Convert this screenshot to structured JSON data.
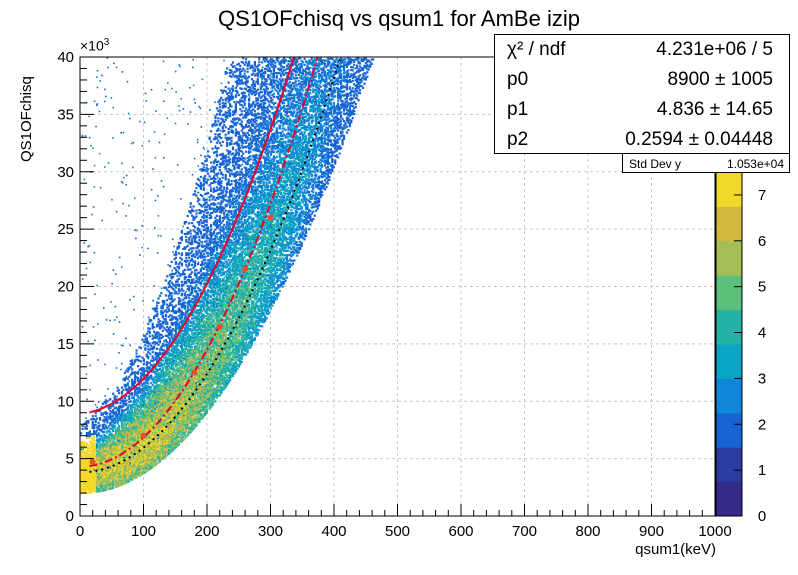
{
  "title": "QS1OFchisq vs qsum1 for AmBe izip",
  "xlabel": "qsum1(keV)",
  "ylabel": "QS1OFchisq",
  "y_multiplier": "×10",
  "y_multiplier_exp": "3",
  "stats": [
    {
      "key": "χ² / ndf",
      "value": "4.231e+06 / 5"
    },
    {
      "key": "p0",
      "value": "8900 ±  1005"
    },
    {
      "key": "p1",
      "value": "4.836 ± 14.65"
    },
    {
      "key": "p2",
      "value": "0.2594 ± 0.04448"
    }
  ],
  "stddev": {
    "key": "Std Dev y",
    "value": "1.053e+04"
  },
  "chart_data": {
    "type": "heatmap",
    "title": "QS1OFchisq vs qsum1 for AmBe izip",
    "xlabel": "qsum1(keV)",
    "ylabel": "QS1OFchisq",
    "xlim": [
      0,
      1000
    ],
    "ylim": [
      0,
      40000
    ],
    "x_ticks": [
      "0",
      "100",
      "200",
      "300",
      "400",
      "500",
      "600",
      "700",
      "800",
      "900",
      "1000"
    ],
    "y_ticks": [
      "0",
      "5",
      "10",
      "15",
      "20",
      "25",
      "30",
      "35",
      "40"
    ],
    "z_ticks": [
      "0",
      "1",
      "2",
      "3",
      "4",
      "5",
      "6",
      "7"
    ],
    "zlim": [
      0,
      7.5
    ],
    "grid": true,
    "colors": [
      "#352a87",
      "#2c3ba0",
      "#1664d3",
      "#0f86d8",
      "#0aa4c5",
      "#23b2a5",
      "#5dbf7c",
      "#a4bd55",
      "#d1b93f",
      "#f3d82a"
    ],
    "fit_function": "p0 + p1*x + p2*x^2",
    "fit_params": {
      "p0": 8900,
      "p1": 4.836,
      "p2": 0.2594
    },
    "curves": [
      {
        "style": "solid",
        "color": "#e8002a",
        "p0": 8900,
        "p1": 4.836,
        "p2": 0.2594,
        "x_range": [
          15,
          340
        ]
      },
      {
        "style": "dash-dot",
        "color": "#e8002a",
        "p0": 4300,
        "p1": 0,
        "p2": 0.255,
        "x_range": [
          15,
          393
        ]
      },
      {
        "style": "dotted",
        "color": "#000000",
        "p0": 3800,
        "p1": 0,
        "p2": 0.215,
        "x_range": [
          15,
          450
        ]
      }
    ],
    "points": {
      "color": "#e8502a",
      "x": [
        20,
        100,
        180,
        220,
        260,
        300
      ],
      "y": [
        4700,
        7000,
        12500,
        16500,
        21500,
        26000
      ]
    },
    "dense_band": {
      "y0": 3600,
      "k": 0.21,
      "x_max": 470,
      "note": "yellow core near y≈4000-6000 at x<120"
    },
    "stats_summary": {
      "std_dev_y": 10530
    }
  }
}
